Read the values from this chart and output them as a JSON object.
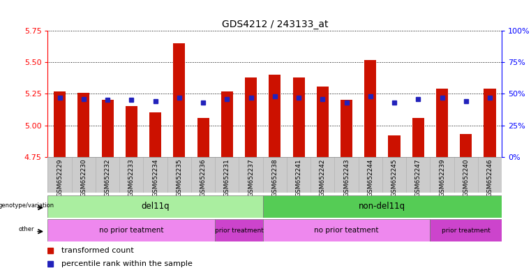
{
  "title": "GDS4212 / 243133_at",
  "samples": [
    "GSM652229",
    "GSM652230",
    "GSM652232",
    "GSM652233",
    "GSM652234",
    "GSM652235",
    "GSM652236",
    "GSM652231",
    "GSM652237",
    "GSM652238",
    "GSM652241",
    "GSM652242",
    "GSM652243",
    "GSM652244",
    "GSM652245",
    "GSM652247",
    "GSM652239",
    "GSM652240",
    "GSM652246"
  ],
  "red_values": [
    5.27,
    5.26,
    5.2,
    5.15,
    5.1,
    5.65,
    5.06,
    5.27,
    5.38,
    5.4,
    5.38,
    5.31,
    5.2,
    5.52,
    4.92,
    5.06,
    5.29,
    4.93,
    5.29
  ],
  "blue_pct": [
    47,
    46,
    45,
    45,
    44,
    47,
    43,
    46,
    47,
    48,
    47,
    46,
    43,
    48,
    43,
    46,
    47,
    44,
    47
  ],
  "ylim_left": [
    4.75,
    5.75
  ],
  "ylim_right": [
    0,
    100
  ],
  "yticks_left": [
    4.75,
    5.0,
    5.25,
    5.5,
    5.75
  ],
  "yticks_right": [
    0,
    25,
    50,
    75,
    100
  ],
  "ytick_labels_right": [
    "0%",
    "25%",
    "50%",
    "75%",
    "100%"
  ],
  "bar_bottom": 4.75,
  "red_color": "#cc1100",
  "blue_color": "#2222bb",
  "bar_width": 0.5,
  "del11q_color": "#aaeea0",
  "non_del11q_color": "#55cc55",
  "no_prior_color": "#ee88ee",
  "prior_color": "#cc44cc",
  "xtick_bg": "#cccccc",
  "axes_facecolor": "#ffffff"
}
